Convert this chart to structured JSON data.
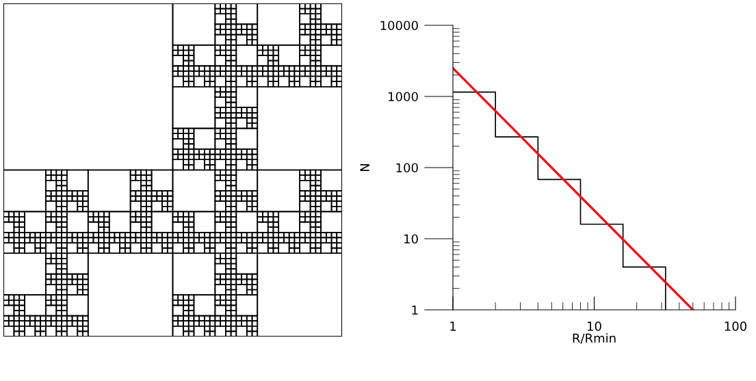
{
  "chart_data": {
    "type": "step",
    "xlabel": "R/Rmin",
    "ylabel": "N",
    "log": "xy",
    "xlim": [
      1,
      100
    ],
    "ylim": [
      1,
      10000
    ],
    "xticks": [
      1,
      10,
      100
    ],
    "yticks": [
      1,
      10,
      100,
      1000,
      10000
    ],
    "grid": false,
    "series": [
      {
        "color": "#000000",
        "x": [
          1,
          2,
          4,
          8,
          16,
          32
        ],
        "values": [
          1150,
          270,
          68,
          16,
          4,
          1
        ]
      },
      {
        "type": "line",
        "color": "#e8141c",
        "x": [
          1,
          50
        ],
        "values": [
          2500,
          1
        ]
      }
    ]
  }
}
